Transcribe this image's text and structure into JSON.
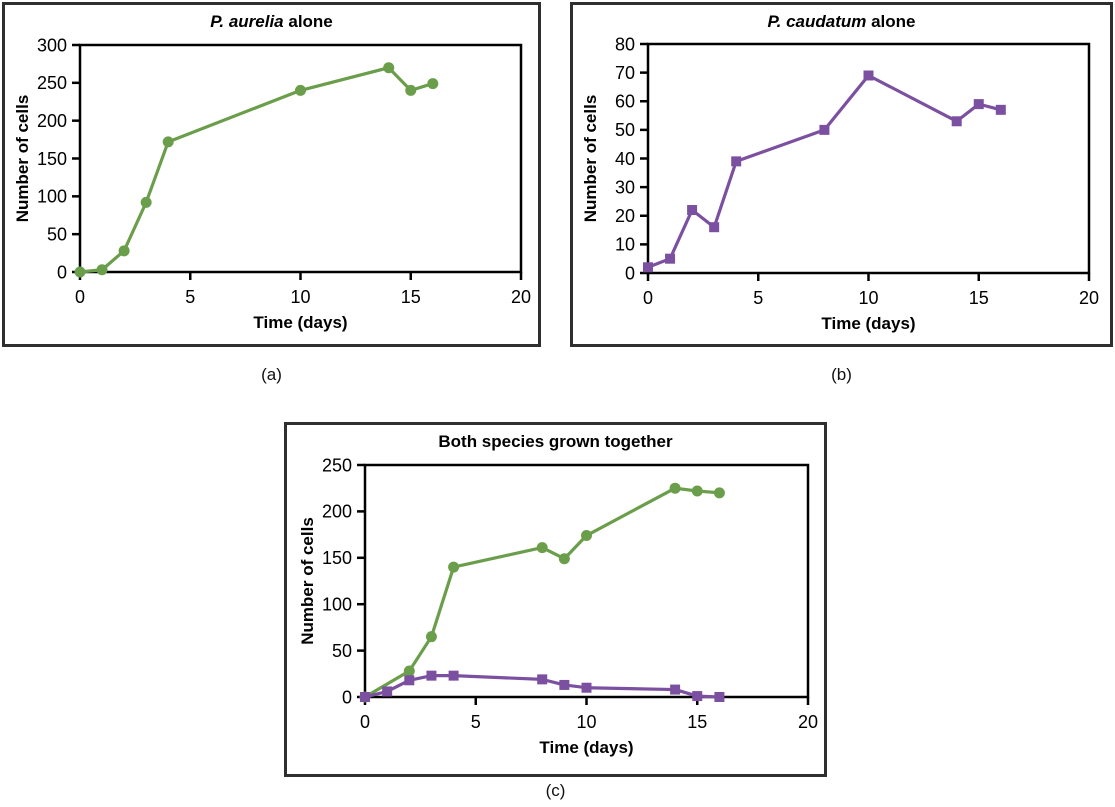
{
  "figure": {
    "background": "#ffffff",
    "panel_border_color": "#2f2f2f",
    "text_color": "#000000",
    "aurelia_color": "#6b9e4a",
    "caudatum_color": "#7c50a0"
  },
  "panels": [
    {
      "caption": "(a)",
      "title_parts": {
        "italic": "P. aurelia",
        "rest": " alone"
      }
    },
    {
      "caption": "(b)",
      "title_parts": {
        "italic": "P. caudatum",
        "rest": " alone"
      }
    },
    {
      "caption": "(c)",
      "title_parts": {
        "italic": "",
        "rest": "Both species grown together"
      }
    }
  ],
  "chart_data": [
    {
      "type": "line",
      "title": "P. aurelia alone",
      "xlabel": "Time (days)",
      "ylabel": "Number of cells",
      "xlim": [
        0,
        20
      ],
      "ylim": [
        0,
        300
      ],
      "xticks": [
        0,
        5,
        10,
        15,
        20
      ],
      "yticks": [
        0,
        50,
        100,
        150,
        200,
        250,
        300
      ],
      "grid": false,
      "legend": "none",
      "series": [
        {
          "name": "P. aurelia",
          "color": "#6b9e4a",
          "marker": "circle",
          "x": [
            0,
            1,
            2,
            3,
            4,
            10,
            14,
            15,
            16
          ],
          "y": [
            0,
            3,
            28,
            92,
            172,
            240,
            270,
            240,
            249
          ]
        }
      ]
    },
    {
      "type": "line",
      "title": "P. caudatum alone",
      "xlabel": "Time (days)",
      "ylabel": "Number of cells",
      "xlim": [
        0,
        20
      ],
      "ylim": [
        0,
        80
      ],
      "xticks": [
        0,
        5,
        10,
        15,
        20
      ],
      "yticks": [
        0,
        10,
        20,
        30,
        40,
        50,
        60,
        70,
        80
      ],
      "grid": false,
      "legend": "none",
      "series": [
        {
          "name": "P. caudatum",
          "color": "#7c50a0",
          "marker": "square",
          "x": [
            0,
            1,
            2,
            3,
            4,
            8,
            10,
            14,
            15,
            16
          ],
          "y": [
            2,
            5,
            22,
            16,
            39,
            50,
            69,
            53,
            59,
            57
          ]
        }
      ]
    },
    {
      "type": "line",
      "title": "Both species grown together",
      "xlabel": "Time (days)",
      "ylabel": "Number of cells",
      "xlim": [
        0,
        20
      ],
      "ylim": [
        0,
        250
      ],
      "xticks": [
        0,
        5,
        10,
        15,
        20
      ],
      "yticks": [
        0,
        50,
        100,
        150,
        200,
        250
      ],
      "grid": false,
      "legend": "none",
      "series": [
        {
          "name": "P. aurelia",
          "color": "#6b9e4a",
          "marker": "circle",
          "x": [
            0,
            2,
            3,
            4,
            8,
            9,
            10,
            14,
            15,
            16
          ],
          "y": [
            0,
            28,
            65,
            140,
            161,
            149,
            174,
            225,
            222,
            220
          ]
        },
        {
          "name": "P. caudatum",
          "color": "#7c50a0",
          "marker": "square",
          "x": [
            0,
            1,
            2,
            3,
            4,
            8,
            9,
            10,
            14,
            15,
            16
          ],
          "y": [
            0,
            6,
            18,
            23,
            23,
            19,
            13,
            10,
            8,
            1,
            0
          ]
        }
      ]
    }
  ]
}
